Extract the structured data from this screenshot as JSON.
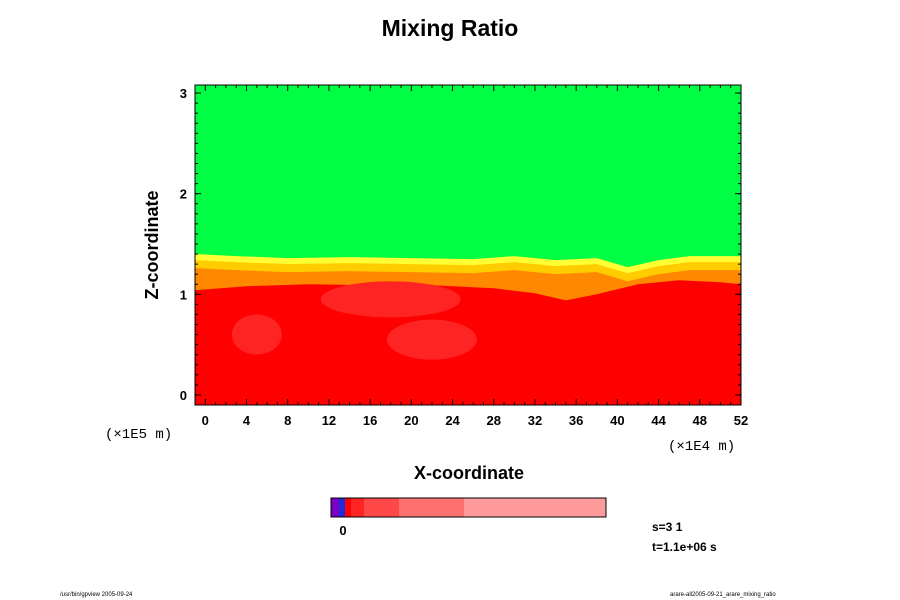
{
  "chart_data": {
    "type": "heatmap",
    "title": "Mixing Ratio",
    "xlabel": "X-coordinate",
    "ylabel": "Z-coordinate",
    "x_unit": "(×1E4 m)",
    "y_unit": "(×1E5 m)",
    "xlim": [
      -1,
      52
    ],
    "ylim": [
      -0.1,
      3.08
    ],
    "x_ticks": [
      0,
      4,
      8,
      12,
      16,
      20,
      24,
      28,
      32,
      36,
      40,
      44,
      48,
      52
    ],
    "y_ticks": [
      0,
      1,
      2,
      3
    ],
    "colorbar": {
      "label": "0",
      "colors": [
        "#7a00c8",
        "#1e2bd6",
        "#ff0000",
        "#ff2424",
        "#ff4848",
        "#ff7070",
        "#ff9a9a"
      ]
    },
    "regions": [
      {
        "name": "upper",
        "color": "#00ff44",
        "z_range": [
          1.4,
          3.08
        ]
      },
      {
        "name": "transition",
        "colors": [
          "#ffff33",
          "#ffcc00",
          "#ff8800"
        ]
      },
      {
        "name": "lower",
        "color": "#ff0000",
        "z_range": [
          -0.1,
          1.4
        ]
      }
    ],
    "interface_z": [
      {
        "x": -1,
        "z": 1.4
      },
      {
        "x": 3,
        "z": 1.38
      },
      {
        "x": 8,
        "z": 1.36
      },
      {
        "x": 14,
        "z": 1.37
      },
      {
        "x": 20,
        "z": 1.36
      },
      {
        "x": 26,
        "z": 1.35
      },
      {
        "x": 30,
        "z": 1.38
      },
      {
        "x": 34,
        "z": 1.34
      },
      {
        "x": 38,
        "z": 1.36
      },
      {
        "x": 41,
        "z": 1.27
      },
      {
        "x": 44,
        "z": 1.34
      },
      {
        "x": 47,
        "z": 1.38
      },
      {
        "x": 52,
        "z": 1.38
      }
    ],
    "red_top_z": [
      {
        "x": -1,
        "z": 1.04
      },
      {
        "x": 4,
        "z": 1.08
      },
      {
        "x": 10,
        "z": 1.1
      },
      {
        "x": 16,
        "z": 1.09
      },
      {
        "x": 22,
        "z": 1.09
      },
      {
        "x": 28,
        "z": 1.06
      },
      {
        "x": 32,
        "z": 1.01
      },
      {
        "x": 35,
        "z": 0.94
      },
      {
        "x": 38,
        "z": 1.0
      },
      {
        "x": 42,
        "z": 1.1
      },
      {
        "x": 46,
        "z": 1.14
      },
      {
        "x": 50,
        "z": 1.12
      },
      {
        "x": 52,
        "z": 1.1
      }
    ]
  },
  "info": {
    "step": "s=3 1",
    "time": "t=1.1e+06 s"
  },
  "footer": {
    "left": "/usr/bin/gpview 2005-09-24",
    "right": "arare-all2005-09-21_arare_mixing_ratio"
  }
}
